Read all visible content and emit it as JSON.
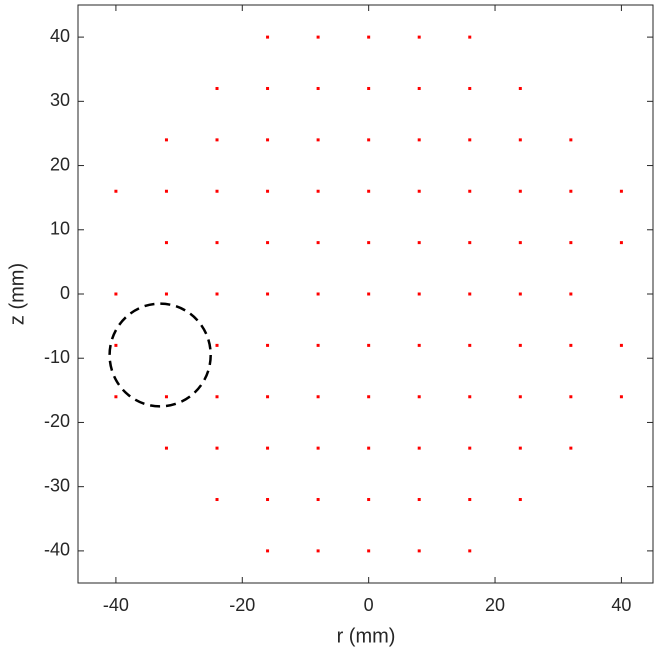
{
  "chart_data": {
    "type": "scatter",
    "xlabel": "r (mm)",
    "ylabel": "z (mm)",
    "color": "#ff0000",
    "x": [
      -16,
      -8,
      0,
      8,
      16,
      -24,
      -16,
      -8,
      0,
      8,
      16,
      24,
      -32,
      -24,
      -16,
      -8,
      0,
      8,
      16,
      24,
      32,
      -40,
      -32,
      -24,
      -16,
      -8,
      0,
      8,
      16,
      24,
      32,
      40,
      -32,
      -24,
      -16,
      -8,
      0,
      8,
      16,
      24,
      32,
      40,
      -40,
      -32,
      -24,
      -16,
      -8,
      0,
      8,
      16,
      24,
      32,
      -40,
      -24,
      -16,
      -8,
      0,
      8,
      16,
      24,
      32,
      40,
      -40,
      -32,
      -24,
      -16,
      -8,
      0,
      8,
      16,
      24,
      32,
      40,
      -32,
      -24,
      -16,
      -8,
      0,
      8,
      16,
      24,
      32,
      -24,
      -16,
      -8,
      0,
      8,
      16,
      24,
      -16,
      -8,
      0,
      8,
      16
    ],
    "y": [
      40,
      40,
      40,
      40,
      40,
      32,
      32,
      32,
      32,
      32,
      32,
      32,
      24,
      24,
      24,
      24,
      24,
      24,
      24,
      24,
      24,
      16,
      16,
      16,
      16,
      16,
      16,
      16,
      16,
      16,
      16,
      16,
      8,
      8,
      8,
      8,
      8,
      8,
      8,
      8,
      8,
      8,
      0,
      0,
      0,
      0,
      0,
      0,
      0,
      0,
      0,
      0,
      -8,
      -8,
      -8,
      -8,
      -8,
      -8,
      -8,
      -8,
      -8,
      -8,
      -16,
      -16,
      -16,
      -16,
      -16,
      -16,
      -16,
      -16,
      -16,
      -16,
      -16,
      -24,
      -24,
      -24,
      -24,
      -24,
      -24,
      -24,
      -24,
      -24,
      -32,
      -32,
      -32,
      -32,
      -32,
      -32,
      -32,
      -40,
      -40,
      -40,
      -40,
      -40
    ],
    "xlim": [
      -46,
      45
    ],
    "ylim": [
      -45,
      45
    ],
    "xticks": [
      -40,
      -20,
      0,
      20,
      40
    ],
    "yticks": [
      -40,
      -30,
      -20,
      -10,
      0,
      10,
      20,
      30,
      40
    ],
    "annotations": [
      {
        "shape": "circle",
        "x": -33,
        "y": -9.5,
        "r": 8,
        "color": "#000000"
      }
    ]
  }
}
